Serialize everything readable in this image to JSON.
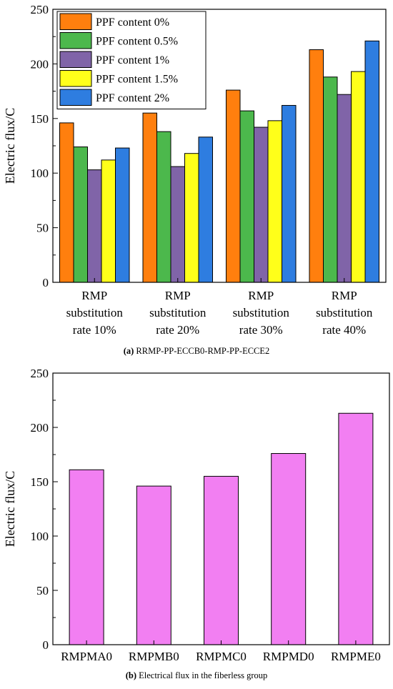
{
  "chart_data": [
    {
      "type": "bar",
      "ylabel": "Electric flux/C",
      "ylim": [
        0,
        250
      ],
      "yticks": [
        0,
        50,
        100,
        150,
        200,
        250
      ],
      "categories": [
        [
          "RMP",
          "substitution",
          "rate 10%"
        ],
        [
          "RMP",
          "substitution",
          "rate 20%"
        ],
        [
          "RMP",
          "substitution",
          "rate 30%"
        ],
        [
          "RMP",
          "substitution",
          "rate 40%"
        ]
      ],
      "series": [
        {
          "name": "PPF content 0%",
          "color": "#FF7F0E",
          "values": [
            146,
            155,
            176,
            213
          ]
        },
        {
          "name": "PPF content 0.5%",
          "color": "#4CB84C",
          "values": [
            124,
            138,
            157,
            188
          ]
        },
        {
          "name": "PPF content 1%",
          "color": "#8064A8",
          "values": [
            103,
            106,
            142,
            172
          ]
        },
        {
          "name": "PPF content 1.5%",
          "color": "#FFFF1A",
          "values": [
            112,
            118,
            148,
            193
          ]
        },
        {
          "name": "PPF content 2%",
          "color": "#2E7DE0",
          "values": [
            123,
            133,
            162,
            221
          ]
        }
      ],
      "legend": "top-left",
      "caption_label": "(a)",
      "caption_text": " RRMP-PP-ECCB0-RMP-PP-ECCE2"
    },
    {
      "type": "bar",
      "ylabel": "Electric flux/C",
      "ylim": [
        0,
        250
      ],
      "yticks": [
        0,
        50,
        100,
        150,
        200,
        250
      ],
      "categories": [
        "RMPMA0",
        "RMPMB0",
        "RMPMC0",
        "RMPMD0",
        "RMPME0"
      ],
      "values": [
        161,
        146,
        155,
        176,
        213
      ],
      "color": "#F27FF2",
      "caption_label": "(b)",
      "caption_text": " Electrical flux in the fiberless group"
    }
  ]
}
